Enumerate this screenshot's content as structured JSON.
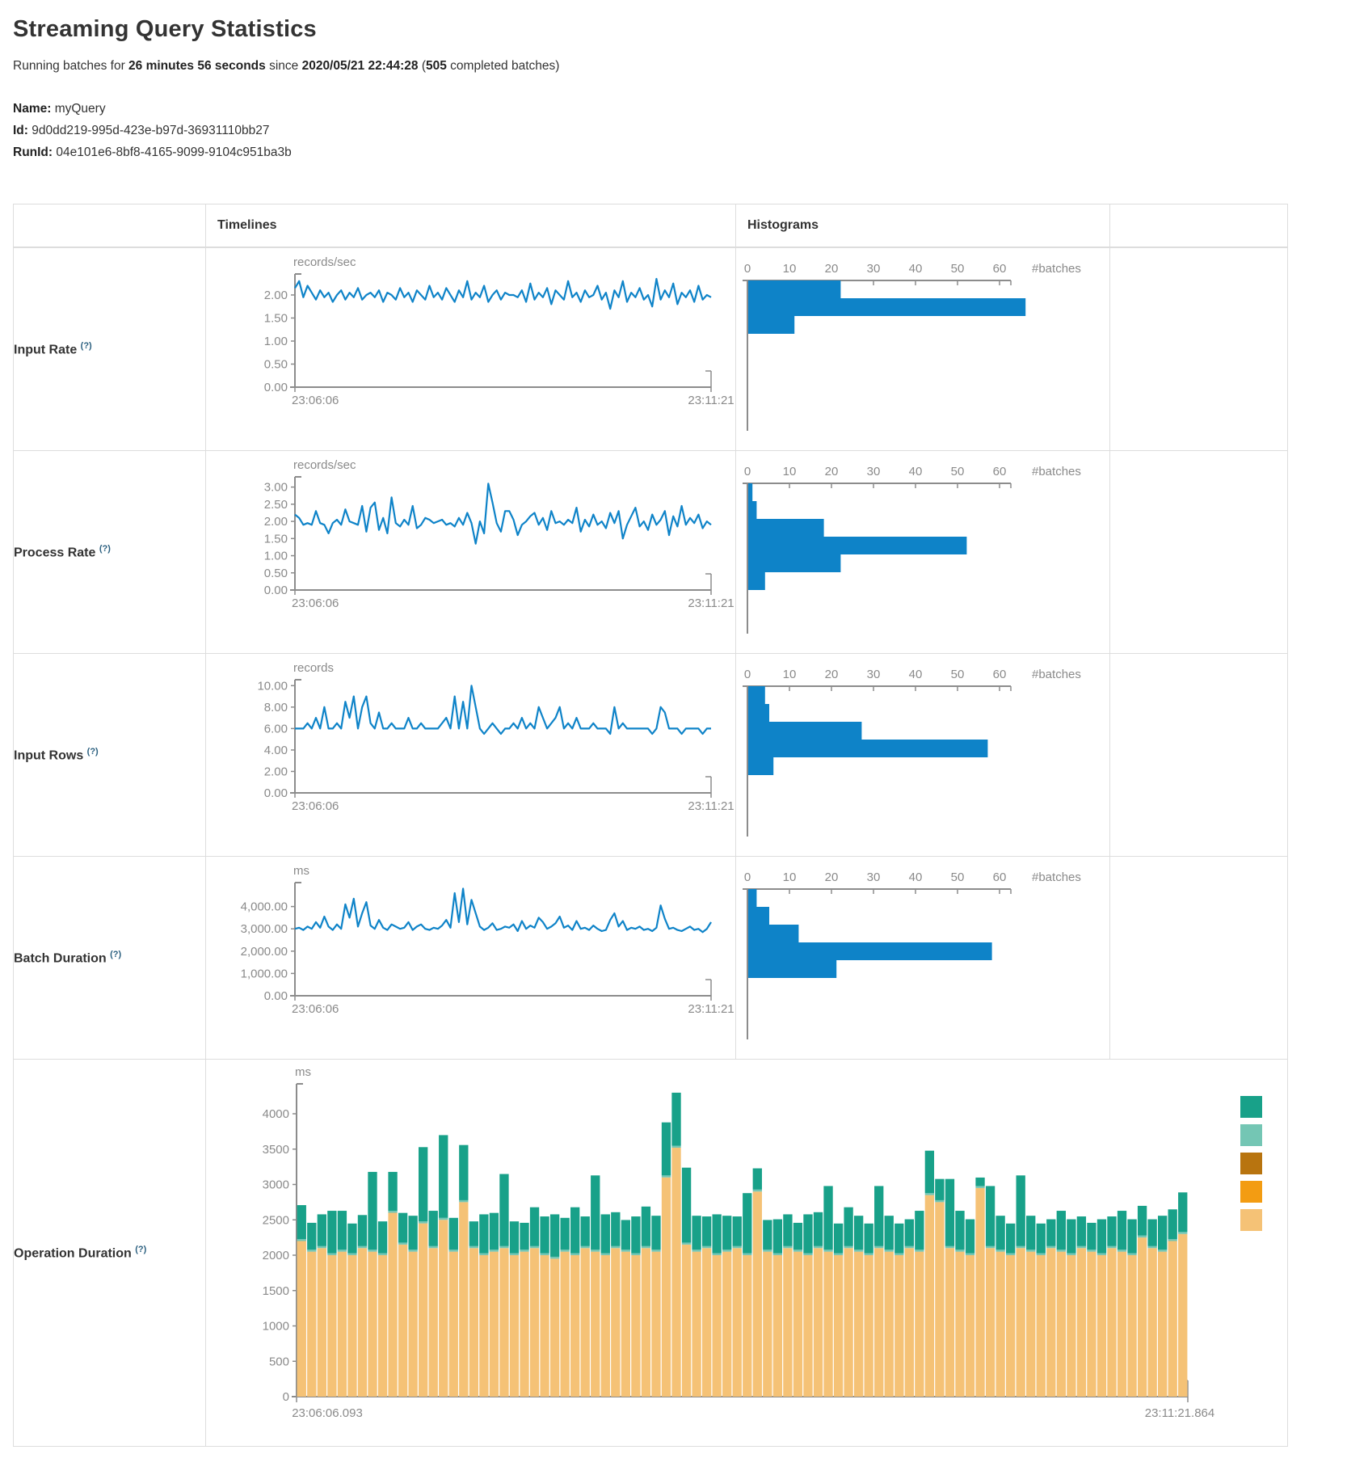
{
  "page": {
    "title": "Streaming Query Statistics"
  },
  "subtitle": {
    "prefix": "Running batches for ",
    "duration": "26 minutes 56 seconds",
    "mid": " since ",
    "timestamp": "2020/05/21 22:44:28",
    "paren": " (",
    "count": "505",
    "suffix": " completed batches)"
  },
  "meta": {
    "name_label": "Name:",
    "name_value": "myQuery",
    "id_label": "Id:",
    "id_value": "9d0dd219-995d-423e-b97d-36931110bb27",
    "runid_label": "RunId:",
    "runid_value": "04e101e6-8bf8-4165-9099-9104c951ba3b"
  },
  "table": {
    "col_timelines": "Timelines",
    "col_histograms": "Histograms",
    "help_marker": "(?)"
  },
  "rows": [
    {
      "label": "Input Rate"
    },
    {
      "label": "Process Rate"
    },
    {
      "label": "Input Rows"
    },
    {
      "label": "Batch Duration"
    },
    {
      "label": "Operation Duration"
    }
  ],
  "colors": {
    "blue": "#0e83c8",
    "axis": "#8c8c8c",
    "teal": "#18a189",
    "teal_light": "#74c6b4",
    "brown": "#b8740f",
    "orange": "#f39c12",
    "tan": "#f5c276",
    "border": "#dddddd"
  },
  "chart_data": [
    {
      "type": "line",
      "title": "Input Rate",
      "timeline": {
        "unit": "records/sec",
        "x_start": "23:06:06",
        "x_end": "23:11:21",
        "y_max": 2.42,
        "y_ticks": [
          {
            "v": 0,
            "label": "0.00"
          },
          {
            "v": 0.5,
            "label": "0.50"
          },
          {
            "v": 1,
            "label": "1.00"
          },
          {
            "v": 1.5,
            "label": "1.50"
          },
          {
            "v": 2,
            "label": "2.00"
          }
        ],
        "values": [
          2.15,
          2.3,
          1.95,
          2.2,
          2.05,
          1.9,
          2.1,
          1.95,
          2.05,
          1.85,
          2,
          2.1,
          1.9,
          2.05,
          1.95,
          2.15,
          1.9,
          2,
          2.05,
          1.95,
          2.1,
          1.85,
          2.05,
          2,
          1.9,
          2.15,
          1.95,
          2.05,
          1.85,
          2.1,
          2,
          1.9,
          2.2,
          1.95,
          2.05,
          1.9,
          2.15,
          2,
          1.85,
          2.1,
          1.95,
          2.3,
          1.9,
          2.05,
          1.95,
          2.2,
          1.85,
          2,
          2.1,
          1.9,
          2.05,
          2,
          2,
          1.95,
          2.1,
          1.85,
          2.25,
          1.9,
          2.05,
          1.95,
          2.15,
          1.8,
          2.1,
          2,
          1.9,
          2.3,
          1.95,
          2.05,
          1.85,
          2.1,
          1.95,
          2,
          2.2,
          1.9,
          2.05,
          1.7,
          2.1,
          1.95,
          2.3,
          1.85,
          2.05,
          1.95,
          2.15,
          1.9,
          2,
          1.75,
          2.35,
          1.9,
          2.1,
          1.95,
          2.25,
          1.8,
          2.05,
          1.95,
          2.1,
          1.85,
          2.2,
          1.9,
          2,
          1.95
        ]
      },
      "histogram": {
        "axis_label": "#batches",
        "tick_values": [
          0,
          10,
          20,
          30,
          40,
          50,
          60
        ],
        "bars": [
          22,
          66,
          11
        ]
      }
    },
    {
      "type": "line",
      "title": "Process Rate",
      "timeline": {
        "unit": "records/sec",
        "x_start": "23:06:06",
        "x_end": "23:11:21",
        "y_max": 3.25,
        "y_ticks": [
          {
            "v": 0,
            "label": "0.00"
          },
          {
            "v": 0.5,
            "label": "0.50"
          },
          {
            "v": 1,
            "label": "1.00"
          },
          {
            "v": 1.5,
            "label": "1.50"
          },
          {
            "v": 2,
            "label": "2.00"
          },
          {
            "v": 2.5,
            "label": "2.50"
          },
          {
            "v": 3,
            "label": "3.00"
          }
        ],
        "values": [
          2.2,
          2.1,
          1.9,
          1.95,
          1.9,
          2.3,
          1.95,
          1.9,
          1.65,
          1.95,
          2.05,
          1.9,
          2.35,
          2,
          1.95,
          1.9,
          2.45,
          1.7,
          2.4,
          2.55,
          1.75,
          2.1,
          1.65,
          2.7,
          1.95,
          1.85,
          2.05,
          1.9,
          2.45,
          1.8,
          1.9,
          2.1,
          2.05,
          1.95,
          2,
          2.05,
          1.9,
          1.95,
          1.85,
          2.1,
          1.9,
          2.25,
          1.95,
          1.35,
          2,
          1.65,
          3.1,
          2.55,
          1.95,
          1.7,
          2.3,
          2.3,
          2.05,
          1.6,
          1.9,
          2,
          2.15,
          2.25,
          1.9,
          2.1,
          1.75,
          2.3,
          1.95,
          2,
          1.9,
          2.05,
          1.95,
          2.4,
          1.7,
          2.05,
          1.85,
          2.2,
          1.9,
          2,
          1.8,
          2.25,
          1.95,
          2.3,
          1.5,
          1.9,
          2.15,
          2.4,
          1.85,
          2,
          1.75,
          2.2,
          1.9,
          2.05,
          2.3,
          1.6,
          2.15,
          1.85,
          2.45,
          1.9,
          2.1,
          1.95,
          2.2,
          1.8,
          2,
          1.9
        ]
      },
      "histogram": {
        "axis_label": "#batches",
        "tick_values": [
          0,
          10,
          20,
          30,
          40,
          50,
          60
        ],
        "bars": [
          1,
          2,
          18,
          52,
          22,
          4
        ]
      }
    },
    {
      "type": "line",
      "title": "Input Rows",
      "timeline": {
        "unit": "records",
        "x_start": "23:06:06",
        "x_end": "23:11:21",
        "y_max": 10.4,
        "y_ticks": [
          {
            "v": 0,
            "label": "0.00"
          },
          {
            "v": 2,
            "label": "2.00"
          },
          {
            "v": 4,
            "label": "4.00"
          },
          {
            "v": 6,
            "label": "6.00"
          },
          {
            "v": 8,
            "label": "8.00"
          },
          {
            "v": 10,
            "label": "10.00"
          }
        ],
        "values": [
          6,
          6,
          6,
          6.5,
          6,
          7,
          6,
          8,
          6,
          6,
          6.5,
          6,
          8.5,
          7,
          9,
          6,
          8,
          9,
          6.5,
          6,
          7.5,
          6,
          6,
          6.5,
          6,
          6,
          6,
          7,
          6,
          6,
          6.5,
          6,
          6,
          6,
          6,
          6.5,
          7,
          6,
          9,
          6,
          8.5,
          6,
          10,
          8,
          6,
          5.5,
          6,
          6.5,
          6,
          5.5,
          6,
          6,
          6.5,
          6,
          7,
          6,
          6.5,
          6,
          8,
          7,
          6,
          6.5,
          7,
          8,
          6,
          6.5,
          6,
          7,
          6,
          6,
          6,
          6.5,
          6,
          6,
          6,
          5.5,
          8,
          6,
          6.5,
          6,
          6,
          6,
          6,
          6,
          6,
          5.5,
          6,
          8,
          7.5,
          6,
          6,
          6,
          5.5,
          6,
          6,
          6,
          6,
          5.5,
          6,
          6
        ]
      },
      "histogram": {
        "axis_label": "#batches",
        "tick_values": [
          0,
          10,
          20,
          30,
          40,
          50,
          60
        ],
        "bars": [
          4,
          5,
          27,
          57,
          6
        ]
      }
    },
    {
      "type": "line",
      "title": "Batch Duration",
      "timeline": {
        "unit": "ms",
        "x_start": "23:06:06",
        "x_end": "23:11:21",
        "y_max": 5000,
        "y_ticks": [
          {
            "v": 0,
            "label": "0.00"
          },
          {
            "v": 1000,
            "label": "1,000.00"
          },
          {
            "v": 2000,
            "label": "2,000.00"
          },
          {
            "v": 3000,
            "label": "3,000.00"
          },
          {
            "v": 4000,
            "label": "4,000.00"
          }
        ],
        "values": [
          3000,
          3050,
          2950,
          3100,
          3000,
          3300,
          3050,
          3550,
          3100,
          2950,
          3200,
          3000,
          4100,
          3500,
          4350,
          3100,
          3700,
          4200,
          3150,
          3000,
          3400,
          3050,
          2950,
          3200,
          3100,
          3000,
          3050,
          3300,
          2950,
          3100,
          3200,
          3000,
          2950,
          3050,
          3000,
          3150,
          3400,
          3050,
          4600,
          3300,
          4800,
          3200,
          4300,
          3700,
          3100,
          2950,
          3050,
          3250,
          2950,
          3000,
          3100,
          3050,
          3200,
          2900,
          3350,
          3000,
          3150,
          3050,
          3500,
          3300,
          3000,
          3100,
          3250,
          3550,
          3050,
          3150,
          2950,
          3350,
          3000,
          3050,
          2950,
          3150,
          3000,
          2900,
          2950,
          3400,
          3700,
          3100,
          3350,
          2950,
          3050,
          3000,
          3100,
          2950,
          3000,
          2900,
          3050,
          4050,
          3450,
          3000,
          3050,
          2950,
          2900,
          3000,
          3100,
          2950,
          3000,
          2850,
          3000,
          3300
        ]
      },
      "histogram": {
        "axis_label": "#batches",
        "tick_values": [
          0,
          10,
          20,
          30,
          40,
          50,
          60
        ],
        "bars": [
          2,
          5,
          12,
          58,
          21
        ]
      }
    },
    {
      "type": "stacked",
      "title": "Operation Duration",
      "timeline": {
        "unit": "ms",
        "x_start": "23:06:06.093",
        "x_end": "23:11:21.864",
        "y_max": 4400,
        "y_ticks": [
          {
            "v": 0,
            "label": "0"
          },
          {
            "v": 500,
            "label": "500"
          },
          {
            "v": 1000,
            "label": "1000"
          },
          {
            "v": 1500,
            "label": "1500"
          },
          {
            "v": 2000,
            "label": "2000"
          },
          {
            "v": 2500,
            "label": "2500"
          },
          {
            "v": 3000,
            "label": "3000"
          },
          {
            "v": 3500,
            "label": "3500"
          },
          {
            "v": 4000,
            "label": "4000"
          }
        ],
        "series": [
          {
            "name": "bottom-segment",
            "color": "#f5c276",
            "values": [
              2200,
              2050,
              2100,
              2000,
              2050,
              2000,
              2100,
              2050,
              2000,
              2600,
              2150,
              2050,
              2450,
              2100,
              2500,
              2050,
              2750,
              2100,
              2000,
              2050,
              2100,
              2000,
              2050,
              2100,
              2000,
              1950,
              2050,
              2000,
              2100,
              2050,
              2000,
              2100,
              2050,
              2000,
              2100,
              2050,
              3100,
              3520,
              2150,
              2050,
              2100,
              2000,
              2050,
              2100,
              2000,
              2900,
              2050,
              2000,
              2100,
              2050,
              2000,
              2100,
              2050,
              2000,
              2100,
              2050,
              2000,
              2100,
              2050,
              2000,
              2100,
              2050,
              2850,
              2750,
              2100,
              2050,
              2000,
              2950,
              2100,
              2050,
              2000,
              2100,
              2050,
              2000,
              2100,
              2050,
              2000,
              2100,
              2050,
              2000,
              2100,
              2050,
              2000,
              2250,
              2100,
              2050,
              2200,
              2300
            ]
          },
          {
            "name": "middle-segment",
            "color": "#74c6b4",
            "uniform_value": 28,
            "count": 88
          },
          {
            "name": "top-segment",
            "color": "#18a189",
            "values": [
              480,
              380,
              450,
              600,
              550,
              420,
              440,
              1100,
              450,
              550,
              420,
              480,
              1050,
              500,
              1170,
              450,
              780,
              350,
              550,
              520,
              1020,
              450,
              380,
              550,
              520,
              600,
              450,
              650,
              420,
              1050,
              550,
              480,
              420,
              520,
              560,
              480,
              750,
              750,
              1060,
              480,
              420,
              550,
              480,
              420,
              850,
              300,
              420,
              480,
              450,
              380,
              550,
              480,
              900,
              420,
              550,
              480,
              420,
              850,
              480,
              420,
              380,
              550,
              600,
              300,
              950,
              550,
              480,
              120,
              850,
              480,
              420,
              1000,
              480,
              420,
              380,
              550,
              480,
              420,
              380,
              480,
              420,
              550,
              480,
              420,
              380,
              480,
              420,
              560
            ]
          }
        ]
      },
      "legend_colors": [
        "#18a189",
        "#74c6b4",
        "#b8740f",
        "#f39c12",
        "#f5c276"
      ]
    }
  ]
}
